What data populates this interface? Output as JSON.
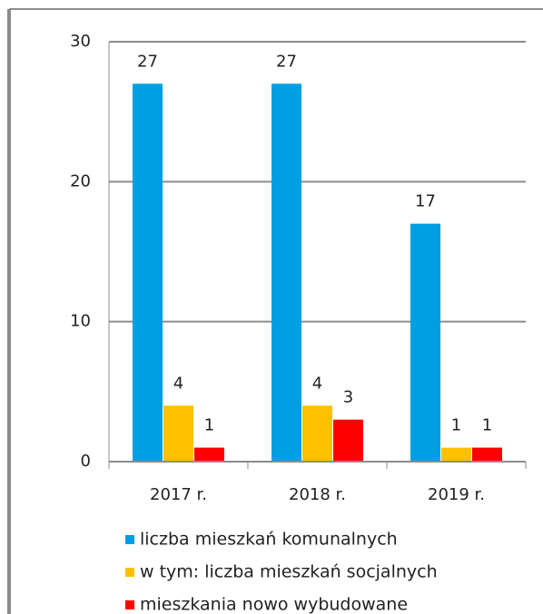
{
  "chart_data": {
    "type": "bar",
    "categories": [
      "2017 r.",
      "2018 r.",
      "2019 r."
    ],
    "series": [
      {
        "name": "liczba mieszkań komunalnych",
        "color": "#009fe3",
        "values": [
          27,
          27,
          17
        ]
      },
      {
        "name": "w tym: liczba mieszkań socjalnych",
        "color": "#ffc000",
        "values": [
          4,
          4,
          1
        ]
      },
      {
        "name": "mieszkania nowo wybudowane",
        "color": "#ff0000",
        "values": [
          1,
          3,
          1
        ]
      }
    ],
    "ylim": [
      0,
      30
    ],
    "yticks": [
      0,
      10,
      20,
      30
    ],
    "grid": true,
    "legend": "bottom"
  }
}
